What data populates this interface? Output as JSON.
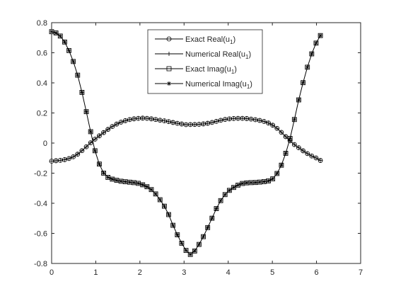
{
  "chart_data": {
    "type": "line",
    "xlim": [
      0,
      7
    ],
    "ylim": [
      -0.8,
      0.8
    ],
    "x_ticks": [
      0,
      1,
      2,
      3,
      4,
      5,
      6,
      7
    ],
    "x_tick_labels": [
      "0",
      "1",
      "2",
      "3",
      "4",
      "5",
      "6",
      "7"
    ],
    "y_ticks": [
      -0.8,
      -0.6,
      -0.4,
      -0.2,
      0,
      0.2,
      0.4,
      0.6,
      0.8
    ],
    "y_tick_labels": [
      "-0.8",
      "-0.6",
      "-0.4",
      "-0.2",
      "0",
      "0.2",
      "0.4",
      "0.6",
      "0.8"
    ],
    "grid": false,
    "legend_position": "top-center",
    "legend": {
      "exact_real": "Exact Real(u",
      "numerical_real": "Numerical Real(u",
      "exact_imag": "Exact Imag(u",
      "numerical_imag": "Numerical Imag(u",
      "subscript": "1",
      "close": ")"
    },
    "line_color": "#000000",
    "x_step": 0.0982,
    "series": [
      {
        "key": "real",
        "marker": "circle",
        "x": [
          0,
          0.5,
          1.0,
          1.5,
          2.0,
          2.5,
          3.0,
          3.14,
          3.5,
          4.0,
          4.5,
          5.0,
          5.5,
          6.0,
          6.18
        ],
        "y": [
          -0.12,
          -0.09,
          0.03,
          0.13,
          0.165,
          0.15,
          0.125,
          0.123,
          0.13,
          0.16,
          0.16,
          0.12,
          -0.01,
          -0.1,
          -0.12
        ]
      },
      {
        "key": "imag",
        "marker": "square",
        "x": [
          0,
          0.2,
          0.4,
          0.6,
          0.8,
          1.0,
          1.2,
          1.5,
          2.0,
          2.3,
          2.6,
          2.8,
          3.0,
          3.14,
          3.3,
          3.5,
          3.8,
          4.0,
          4.3,
          4.7,
          5.0,
          5.2,
          5.4,
          5.6,
          5.8,
          6.0,
          6.18
        ],
        "y": [
          0.74,
          0.71,
          0.61,
          0.44,
          0.19,
          -0.07,
          -0.21,
          -0.25,
          -0.27,
          -0.32,
          -0.44,
          -0.58,
          -0.69,
          -0.74,
          -0.69,
          -0.58,
          -0.4,
          -0.32,
          -0.27,
          -0.26,
          -0.24,
          -0.15,
          0.03,
          0.29,
          0.51,
          0.67,
          0.74
        ]
      }
    ]
  }
}
